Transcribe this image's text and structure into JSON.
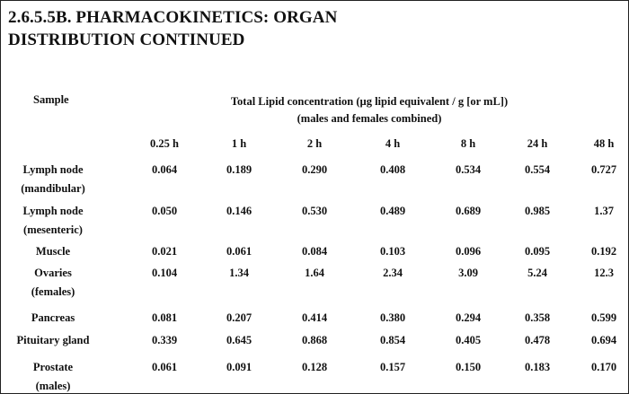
{
  "title": {
    "line1": "2.6.5.5B. PHARMACOKINETICS: ORGAN",
    "line2": "DISTRIBUTION CONTINUED"
  },
  "table": {
    "sample_header": "Sample",
    "concentration_header": {
      "line1": "Total Lipid concentration (µg lipid equivalent / g [or mL])",
      "line2": "(males and females combined)"
    },
    "columns": [
      "0.25 h",
      "1 h",
      "2 h",
      "4 h",
      "8 h",
      "24 h",
      "48 h"
    ],
    "rows": [
      {
        "label": [
          "Lymph node",
          "(mandibular)"
        ],
        "values": [
          "0.064",
          "0.189",
          "0.290",
          "0.408",
          "0.534",
          "0.554",
          "0.727"
        ]
      },
      {
        "label": [
          "Lymph node",
          "(mesenteric)"
        ],
        "values": [
          "0.050",
          "0.146",
          "0.530",
          "0.489",
          "0.689",
          "0.985",
          "1.37"
        ]
      },
      {
        "label": [
          "Muscle"
        ],
        "values": [
          "0.021",
          "0.061",
          "0.084",
          "0.103",
          "0.096",
          "0.095",
          "0.192"
        ]
      },
      {
        "label": [
          "Ovaries",
          "(females)"
        ],
        "values": [
          "0.104",
          "1.34",
          "1.64",
          "2.34",
          "3.09",
          "5.24",
          "12.3"
        ]
      },
      {
        "label": [
          "Pancreas"
        ],
        "values": [
          "0.081",
          "0.207",
          "0.414",
          "0.380",
          "0.294",
          "0.358",
          "0.599"
        ]
      },
      {
        "label": [
          "Pituitary gland"
        ],
        "values": [
          "0.339",
          "0.645",
          "0.868",
          "0.854",
          "0.405",
          "0.478",
          "0.694"
        ]
      },
      {
        "label": [
          "Prostate",
          "(males)"
        ],
        "values": [
          "0.061",
          "0.091",
          "0.128",
          "0.157",
          "0.150",
          "0.183",
          "0.170"
        ]
      }
    ]
  }
}
